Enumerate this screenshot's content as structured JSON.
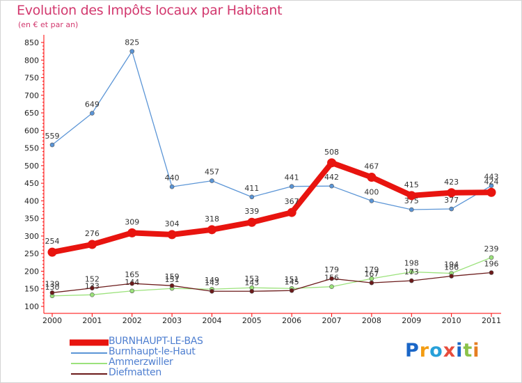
{
  "title": "Evolution des Impôts locaux par Habitant",
  "subtitle": "(en € et par an)",
  "logo": {
    "text": "Proxiti",
    "letters": [
      "P",
      "r",
      "o",
      "x",
      "i",
      "t",
      "i"
    ],
    "colors": [
      "#1a66c7",
      "#f39c12",
      "#27a0d9",
      "#e74c3c",
      "#1a66c7",
      "#8bc34a",
      "#e67e22"
    ]
  },
  "chart_data": {
    "type": "line",
    "x": [
      "2000",
      "2001",
      "2002",
      "2003",
      "2004",
      "2005",
      "2006",
      "2007",
      "2008",
      "2009",
      "2010",
      "2011"
    ],
    "ylim": [
      100,
      850
    ],
    "yticks": [
      100,
      150,
      200,
      250,
      300,
      350,
      400,
      450,
      500,
      550,
      600,
      650,
      700,
      750,
      800,
      850
    ],
    "grid": false,
    "legend_position": "bottom-left",
    "series": [
      {
        "name": "Burnhaupt-le-Haut",
        "color": "#5b95d6",
        "values": [
          559,
          649,
          825,
          440,
          457,
          411,
          441,
          442,
          400,
          375,
          377,
          443
        ]
      },
      {
        "name": "Ammerzwiller",
        "color": "#9be27b",
        "values": [
          130,
          133,
          144,
          151,
          149,
          153,
          151,
          156,
          179,
          198,
          194,
          239
        ]
      },
      {
        "name": "Diefmatten",
        "color": "#6b1a1a",
        "values": [
          139,
          152,
          165,
          159,
          143,
          143,
          145,
          179,
          167,
          173,
          186,
          196
        ]
      },
      {
        "name": "BURNHAUPT-LE-BAS",
        "color": "#e8140f",
        "values": [
          254,
          276,
          309,
          304,
          318,
          339,
          367,
          508,
          467,
          415,
          423,
          424
        ]
      }
    ],
    "data_labels": [
      {
        "series": "Burnhaupt-le-Haut",
        "texts": [
          "559",
          "649",
          "825",
          "440",
          "457",
          "411",
          "441",
          "442",
          "400",
          "375",
          "377",
          "443"
        ]
      },
      {
        "series": "Ammerzwiller",
        "texts": [
          "130",
          "133",
          "144",
          "151",
          "149",
          "153",
          "151",
          "156",
          "179",
          "198",
          "194",
          "239"
        ]
      },
      {
        "series": "Diefmatten",
        "texts": [
          "139",
          "152",
          "165",
          "159",
          "143",
          "143",
          "145",
          "179",
          "167",
          "173",
          "186",
          "196"
        ]
      },
      {
        "series": "BURNHAUPT-LE-BAS",
        "texts": [
          "254",
          "276",
          "309",
          "304",
          "318",
          "339",
          "367",
          "508",
          "467",
          "415",
          "423",
          "424"
        ]
      }
    ],
    "legend": [
      "BURNHAUPT-LE-BAS",
      "Burnhaupt-le-Haut",
      "Ammerzwiller",
      "Diefmatten"
    ]
  }
}
